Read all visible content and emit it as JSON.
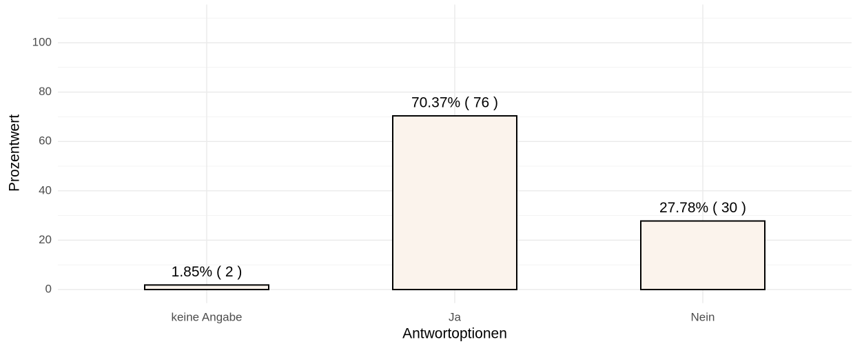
{
  "chart_data": {
    "type": "bar",
    "x_label": "Antwortoptionen",
    "y_label": "Prozentwert",
    "categories": [
      "keine Angabe",
      "Ja",
      "Nein"
    ],
    "values": [
      1.85,
      70.37,
      27.78
    ],
    "value_labels": [
      "1.85% ( 2 )",
      "70.37% ( 76 )",
      "27.78% ( 30 )"
    ],
    "color": "#fbf3ec",
    "edge_color": "#000000",
    "ylim": [
      -5.5,
      115.5
    ],
    "yticks": [
      0,
      20,
      40,
      60,
      80,
      100
    ],
    "minor_yticks": [
      10,
      30,
      50,
      70,
      90,
      110
    ],
    "grid": true
  }
}
